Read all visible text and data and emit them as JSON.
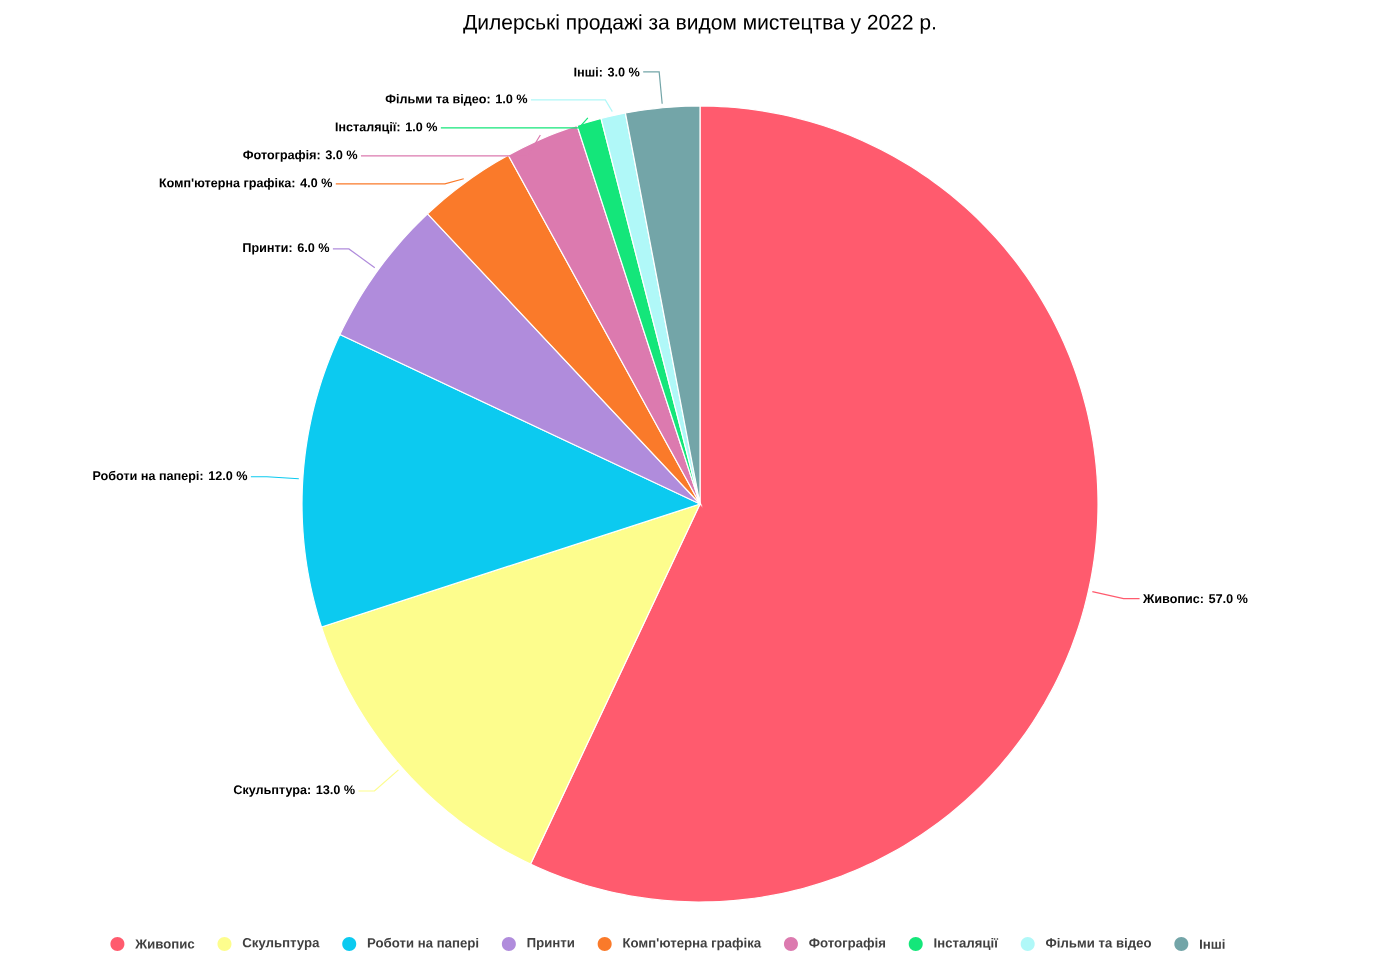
{
  "chart_data": {
    "type": "pie",
    "title": "Дилерські продажі за видом мистецтва у 2022 р.",
    "categories": [
      "Живопис",
      "Скульптура",
      "Роботи на папері",
      "Принти",
      "Комп'ютерна графіка",
      "Фотографія",
      "Інсталяції",
      "Фільми та відео",
      "Інші"
    ],
    "values": [
      57,
      13,
      12,
      6,
      4,
      3,
      1,
      1,
      3
    ],
    "value_labels": [
      "Живопис: 57.0 %",
      "Скульптура: 13.0 %",
      "Роботи на папері: 12.0 %",
      "Принти: 6.0 %",
      "Комп'ютерна графіка: 4.0 %",
      "Фотографія: 3.0 %",
      "Інсталяції: 1.0 %",
      "Фільми та відео: 1.0 %",
      "Інші: 3.0 %"
    ],
    "colors": [
      "#ff5b6e",
      "#fdfd8d",
      "#0ccaf0",
      "#b08cdc",
      "#fa7a2a",
      "#dc7aaf",
      "#14e67a",
      "#b0f8f8",
      "#73a5a8"
    ],
    "legend": "bottom"
  }
}
